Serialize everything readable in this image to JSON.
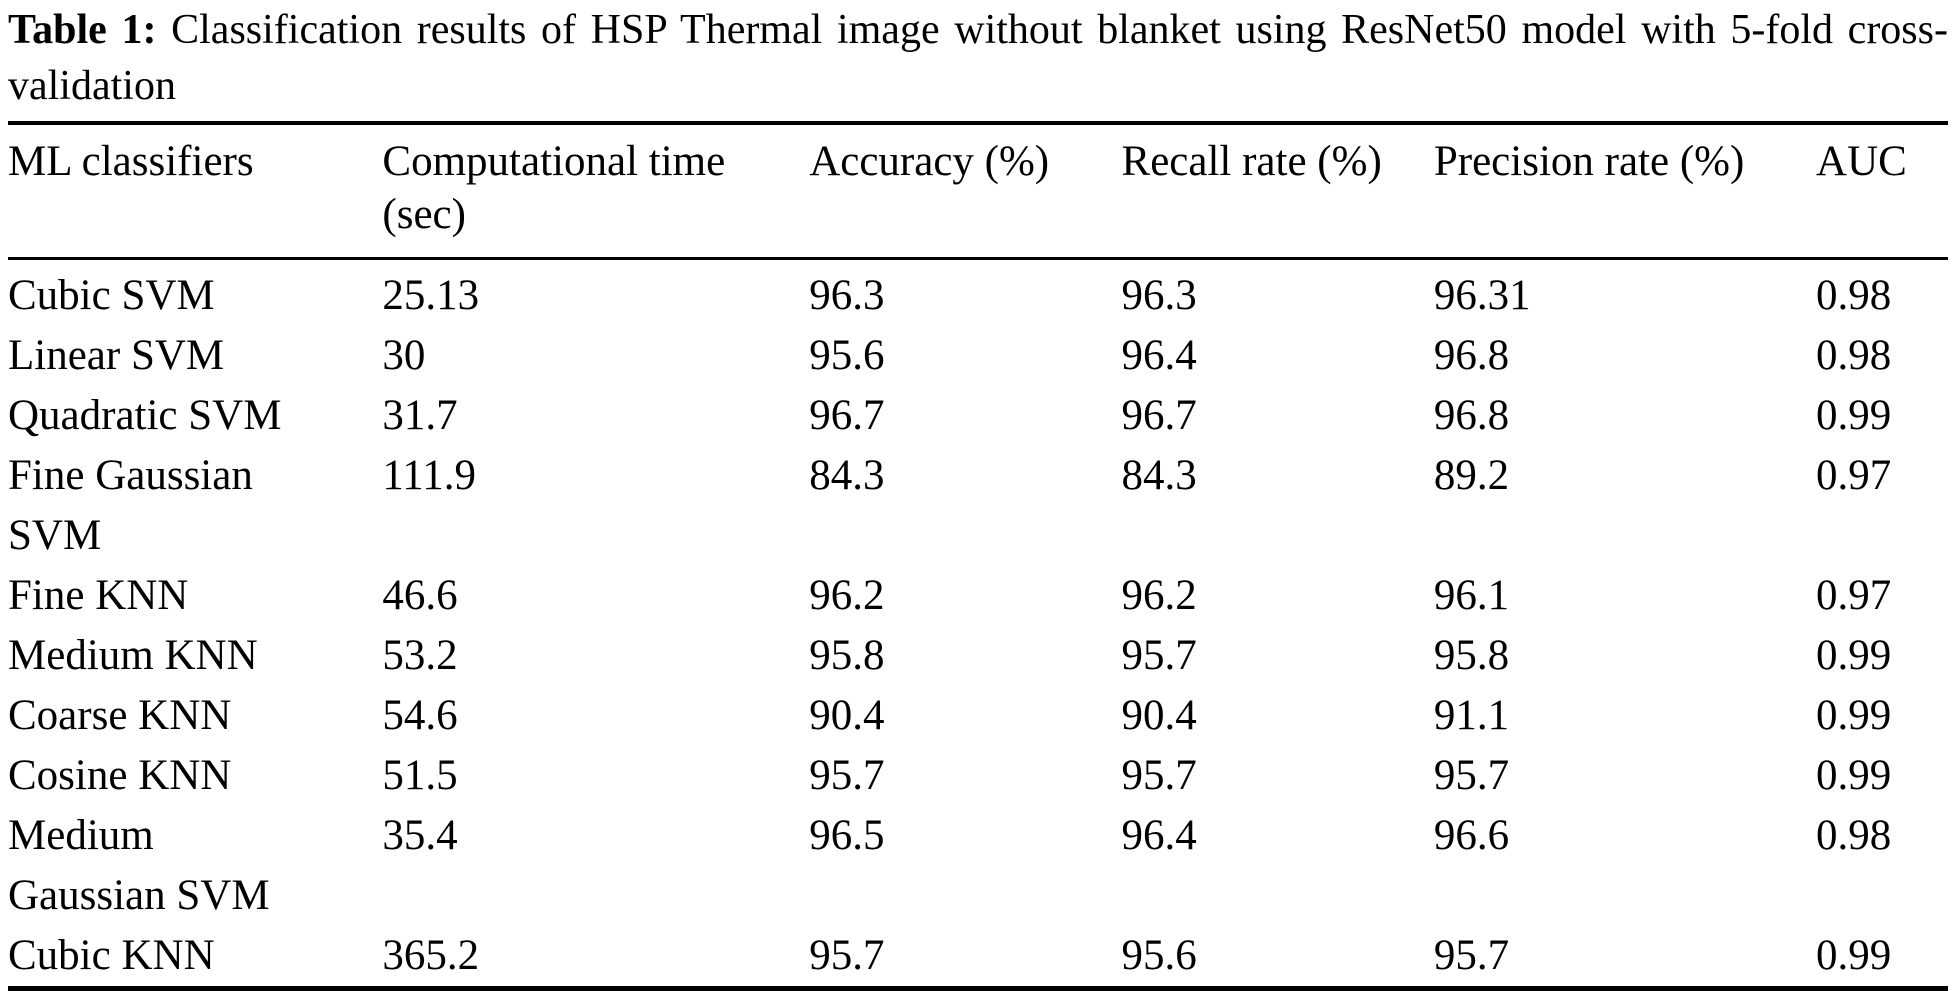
{
  "caption": {
    "label": "Table 1:",
    "text": "Classification results of HSP Thermal image without blanket using ResNet50 model with 5-fold cross-validation"
  },
  "table": {
    "columns": [
      "ML classifiers",
      "Computational time\n(sec)",
      "Accuracy (%)",
      "Recall rate (%)",
      "Precision rate (%)",
      "AUC"
    ],
    "rows": [
      [
        "Cubic SVM",
        "25.13",
        "96.3",
        "96.3",
        "96.31",
        "0.98"
      ],
      [
        "Linear SVM",
        "30",
        "95.6",
        "96.4",
        "96.8",
        "0.98"
      ],
      [
        "Quadratic SVM",
        "31.7",
        "96.7",
        "96.7",
        "96.8",
        "0.99"
      ],
      [
        "Fine Gaussian\nSVM",
        "111.9",
        "84.3",
        "84.3",
        "89.2",
        "0.97"
      ],
      [
        "Fine KNN",
        "46.6",
        "96.2",
        "96.2",
        "96.1",
        "0.97"
      ],
      [
        "Medium KNN",
        "53.2",
        "95.8",
        "95.7",
        "95.8",
        "0.99"
      ],
      [
        "Coarse KNN",
        "54.6",
        "90.4",
        "90.4",
        "91.1",
        "0.99"
      ],
      [
        "Cosine KNN",
        "51.5",
        "95.7",
        "95.7",
        "95.7",
        "0.99"
      ],
      [
        "Medium\nGaussian SVM",
        "35.4",
        "96.5",
        "96.4",
        "96.6",
        "0.98"
      ],
      [
        "Cubic KNN",
        "365.2",
        "95.7",
        "95.6",
        "95.7",
        "0.99"
      ]
    ]
  },
  "chart_data": {
    "type": "table",
    "title": "Table 1: Classification results of HSP Thermal image without blanket using ResNet50 model with 5-fold cross-validation",
    "columns": [
      "ML classifiers",
      "Computational time (sec)",
      "Accuracy (%)",
      "Recall rate (%)",
      "Precision rate (%)",
      "AUC"
    ],
    "rows": [
      [
        "Cubic SVM",
        25.13,
        96.3,
        96.3,
        96.31,
        0.98
      ],
      [
        "Linear SVM",
        30,
        95.6,
        96.4,
        96.8,
        0.98
      ],
      [
        "Quadratic SVM",
        31.7,
        96.7,
        96.7,
        96.8,
        0.99
      ],
      [
        "Fine Gaussian SVM",
        111.9,
        84.3,
        84.3,
        89.2,
        0.97
      ],
      [
        "Fine KNN",
        46.6,
        96.2,
        96.2,
        96.1,
        0.97
      ],
      [
        "Medium KNN",
        53.2,
        95.8,
        95.7,
        95.8,
        0.99
      ],
      [
        "Coarse KNN",
        54.6,
        90.4,
        90.4,
        91.1,
        0.99
      ],
      [
        "Cosine KNN",
        51.5,
        95.7,
        95.7,
        95.7,
        0.99
      ],
      [
        "Medium Gaussian SVM",
        35.4,
        96.5,
        96.4,
        96.6,
        0.98
      ],
      [
        "Cubic KNN",
        365.2,
        95.7,
        95.6,
        95.7,
        0.99
      ]
    ],
    "colors": {
      "text": "#000000",
      "background": "#ffffff",
      "rule": "#000000"
    }
  }
}
